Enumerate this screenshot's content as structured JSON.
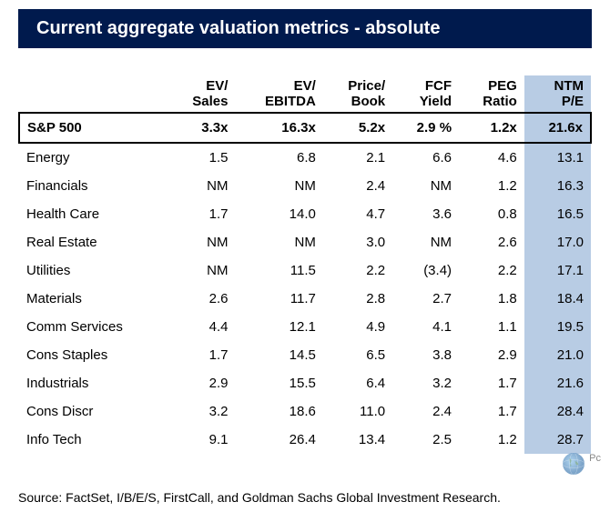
{
  "title": "Current aggregate valuation metrics - absolute",
  "columns": [
    {
      "line1": "",
      "line2": ""
    },
    {
      "line1": "EV/",
      "line2": "Sales"
    },
    {
      "line1": "EV/",
      "line2": "EBITDA"
    },
    {
      "line1": "Price/",
      "line2": "Book"
    },
    {
      "line1": "FCF",
      "line2": "Yield"
    },
    {
      "line1": "PEG",
      "line2": "Ratio"
    },
    {
      "line1": "NTM",
      "line2": "P/E"
    }
  ],
  "sp500": {
    "label": "S&P 500",
    "ev_sales": "3.3x",
    "ev_ebitda": "16.3x",
    "price_book": "5.2x",
    "fcf_yield": "2.9 %",
    "peg_ratio": "1.2x",
    "ntm_pe": "21.6x"
  },
  "rows": [
    {
      "label": "Energy",
      "ev_sales": "1.5",
      "ev_ebitda": "6.8",
      "price_book": "2.1",
      "fcf_yield": "6.6",
      "peg_ratio": "4.6",
      "ntm_pe": "13.1"
    },
    {
      "label": "Financials",
      "ev_sales": "NM",
      "ev_ebitda": "NM",
      "price_book": "2.4",
      "fcf_yield": "NM",
      "peg_ratio": "1.2",
      "ntm_pe": "16.3"
    },
    {
      "label": "Health Care",
      "ev_sales": "1.7",
      "ev_ebitda": "14.0",
      "price_book": "4.7",
      "fcf_yield": "3.6",
      "peg_ratio": "0.8",
      "ntm_pe": "16.5"
    },
    {
      "label": "Real Estate",
      "ev_sales": "NM",
      "ev_ebitda": "NM",
      "price_book": "3.0",
      "fcf_yield": "NM",
      "peg_ratio": "2.6",
      "ntm_pe": "17.0"
    },
    {
      "label": "Utilities",
      "ev_sales": "NM",
      "ev_ebitda": "11.5",
      "price_book": "2.2",
      "fcf_yield": "(3.4)",
      "peg_ratio": "2.2",
      "ntm_pe": "17.1"
    },
    {
      "label": "Materials",
      "ev_sales": "2.6",
      "ev_ebitda": "11.7",
      "price_book": "2.8",
      "fcf_yield": "2.7",
      "peg_ratio": "1.8",
      "ntm_pe": "18.4"
    },
    {
      "label": "Comm Services",
      "ev_sales": "4.4",
      "ev_ebitda": "12.1",
      "price_book": "4.9",
      "fcf_yield": "4.1",
      "peg_ratio": "1.1",
      "ntm_pe": "19.5"
    },
    {
      "label": "Cons Staples",
      "ev_sales": "1.7",
      "ev_ebitda": "14.5",
      "price_book": "6.5",
      "fcf_yield": "3.8",
      "peg_ratio": "2.9",
      "ntm_pe": "21.0"
    },
    {
      "label": "Industrials",
      "ev_sales": "2.9",
      "ev_ebitda": "15.5",
      "price_book": "6.4",
      "fcf_yield": "3.2",
      "peg_ratio": "1.7",
      "ntm_pe": "21.6"
    },
    {
      "label": "Cons Discr",
      "ev_sales": "3.2",
      "ev_ebitda": "18.6",
      "price_book": "11.0",
      "fcf_yield": "2.4",
      "peg_ratio": "1.7",
      "ntm_pe": "28.4"
    },
    {
      "label": "Info Tech",
      "ev_sales": "9.1",
      "ev_ebitda": "26.4",
      "price_book": "13.4",
      "fcf_yield": "2.5",
      "peg_ratio": "1.2",
      "ntm_pe": "28.7"
    }
  ],
  "source": "Source: FactSet, I/B/E/S, FirstCall, and Goldman Sachs Global Investment Research.",
  "corner_label": "Pc",
  "colors": {
    "title_bg": "#001a4d",
    "title_text": "#ffffff",
    "highlight_col_bg": "#b8cce4",
    "text": "#000000"
  },
  "table_style": {
    "font_size": 15,
    "header_border_bottom": "1px solid #000",
    "sp500_border": "2px solid #000",
    "highlight_column_index": 6
  }
}
